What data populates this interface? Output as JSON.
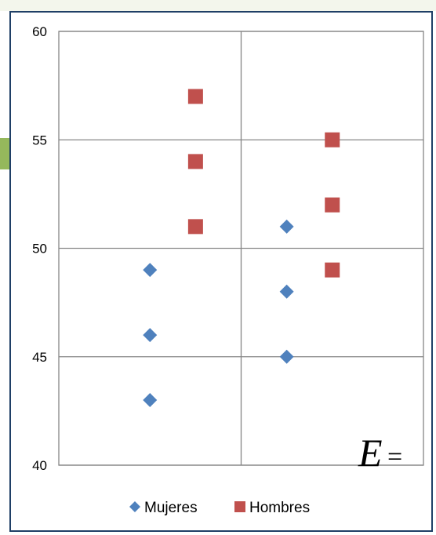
{
  "chart_data": {
    "type": "scatter",
    "title": "",
    "xlabel": "",
    "ylabel": "",
    "ylim": [
      40,
      60
    ],
    "yticks": [
      "40",
      "45",
      "50",
      "55",
      "60"
    ],
    "xlim": [
      0,
      2
    ],
    "grid": true,
    "legend_position": "bottom",
    "series": [
      {
        "name": "Mujeres",
        "marker": "diamond",
        "color": "#4f81bd",
        "points": [
          {
            "x": 0.5,
            "y": 43
          },
          {
            "x": 0.5,
            "y": 46
          },
          {
            "x": 0.5,
            "y": 49
          },
          {
            "x": 1.25,
            "y": 45
          },
          {
            "x": 1.25,
            "y": 48
          },
          {
            "x": 1.25,
            "y": 51
          }
        ]
      },
      {
        "name": "Hombres",
        "marker": "square",
        "color": "#c0504d",
        "points": [
          {
            "x": 0.75,
            "y": 51
          },
          {
            "x": 0.75,
            "y": 54
          },
          {
            "x": 0.75,
            "y": 57
          },
          {
            "x": 1.5,
            "y": 49
          },
          {
            "x": 1.5,
            "y": 52
          },
          {
            "x": 1.5,
            "y": 55
          }
        ]
      }
    ]
  },
  "overlay": {
    "equation_letter": "E",
    "equation_sign": "="
  }
}
